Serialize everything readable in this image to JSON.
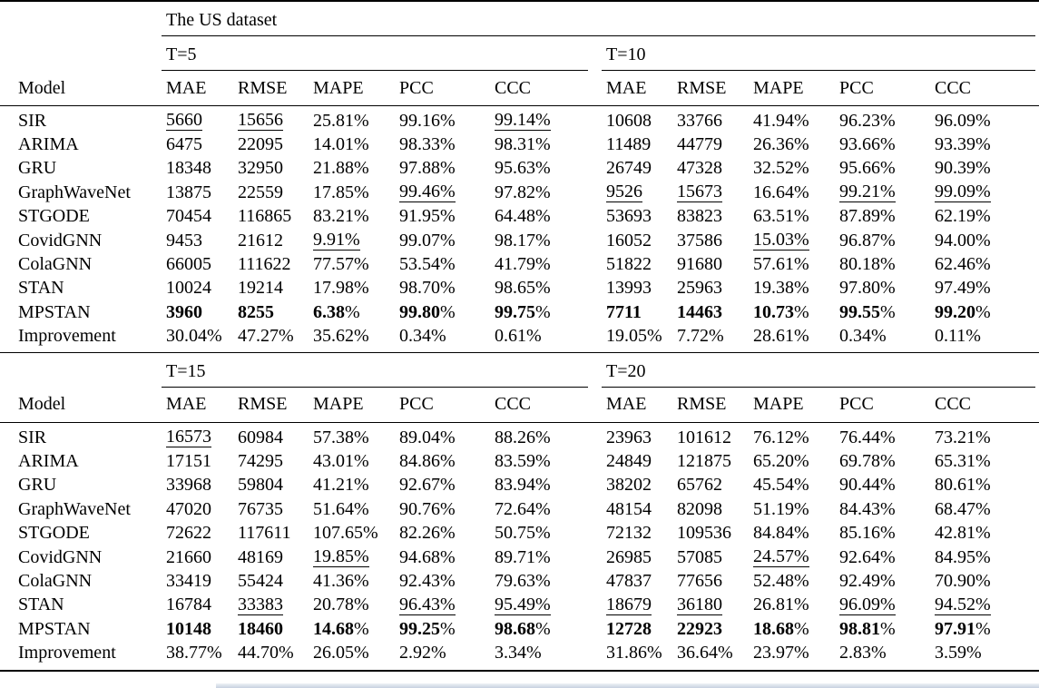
{
  "table": {
    "dataset_title": "The US dataset",
    "model_header": "Model",
    "col_headers": [
      "MAE",
      "RMSE",
      "MAPE",
      "PCC",
      "CCC"
    ],
    "style_key": {
      "b": "bold-best-result",
      "u": "underline-second-best"
    },
    "sections": [
      {
        "groups": [
          "T=5",
          "T=10"
        ],
        "rows": [
          {
            "model": "SIR",
            "cells": [
              {
                "v": "5660",
                "s": "u"
              },
              {
                "v": "15656",
                "s": "u"
              },
              "25.81%",
              "99.16%",
              {
                "v": "99.14%",
                "s": "u"
              },
              "10608",
              "33766",
              "41.94%",
              "96.23%",
              "96.09%"
            ]
          },
          {
            "model": "ARIMA",
            "cells": [
              "6475",
              "22095",
              "14.01%",
              "98.33%",
              "98.31%",
              "11489",
              "44779",
              "26.36%",
              "93.66%",
              "93.39%"
            ]
          },
          {
            "model": "GRU",
            "cells": [
              "18348",
              "32950",
              "21.88%",
              "97.88%",
              "95.63%",
              "26749",
              "47328",
              "32.52%",
              "95.66%",
              "90.39%"
            ]
          },
          {
            "model": "GraphWaveNet",
            "cells": [
              "13875",
              "22559",
              "17.85%",
              {
                "v": "99.46%",
                "s": "u"
              },
              "97.82%",
              {
                "v": "9526",
                "s": "u"
              },
              {
                "v": "15673",
                "s": "u"
              },
              "16.64%",
              {
                "v": "99.21%",
                "s": "u"
              },
              {
                "v": "99.09%",
                "s": "u"
              }
            ]
          },
          {
            "model": "STGODE",
            "cells": [
              "70454",
              "116865",
              "83.21%",
              "91.95%",
              "64.48%",
              "53693",
              "83823",
              "63.51%",
              "87.89%",
              "62.19%"
            ]
          },
          {
            "model": "CovidGNN",
            "cells": [
              "9453",
              "21612",
              {
                "v": "9.91%",
                "s": "u"
              },
              "99.07%",
              "98.17%",
              "16052",
              "37586",
              {
                "v": "15.03%",
                "s": "u"
              },
              "96.87%",
              "94.00%"
            ]
          },
          {
            "model": "ColaGNN",
            "cells": [
              "66005",
              "111622",
              "77.57%",
              "53.54%",
              "41.79%",
              "51822",
              "91680",
              "57.61%",
              "80.18%",
              "62.46%"
            ]
          },
          {
            "model": "STAN",
            "cells": [
              "10024",
              "19214",
              "17.98%",
              "98.70%",
              "98.65%",
              "13993",
              "25963",
              "19.38%",
              "97.80%",
              "97.49%"
            ]
          },
          {
            "model": "MPSTAN",
            "cells": [
              {
                "v": "3960",
                "s": "b"
              },
              {
                "v": "8255",
                "s": "b"
              },
              {
                "v": "6.38%",
                "s": "b"
              },
              {
                "v": "99.80%",
                "s": "b"
              },
              {
                "v": "99.75%",
                "s": "b"
              },
              {
                "v": "7711",
                "s": "b"
              },
              {
                "v": "14463",
                "s": "b"
              },
              {
                "v": "10.73%",
                "s": "b"
              },
              {
                "v": "99.55%",
                "s": "b"
              },
              {
                "v": "99.20%",
                "s": "b"
              }
            ]
          },
          {
            "model": "Improvement",
            "cells": [
              "30.04%",
              "47.27%",
              "35.62%",
              "0.34%",
              "0.61%",
              "19.05%",
              "7.72%",
              "28.61%",
              "0.34%",
              "0.11%"
            ]
          }
        ]
      },
      {
        "groups": [
          "T=15",
          "T=20"
        ],
        "rows": [
          {
            "model": "SIR",
            "cells": [
              {
                "v": "16573",
                "s": "u"
              },
              "60984",
              "57.38%",
              "89.04%",
              "88.26%",
              "23963",
              "101612",
              "76.12%",
              "76.44%",
              "73.21%"
            ]
          },
          {
            "model": "ARIMA",
            "cells": [
              "17151",
              "74295",
              "43.01%",
              "84.86%",
              "83.59%",
              "24849",
              "121875",
              "65.20%",
              "69.78%",
              "65.31%"
            ]
          },
          {
            "model": "GRU",
            "cells": [
              "33968",
              "59804",
              "41.21%",
              "92.67%",
              "83.94%",
              "38202",
              "65762",
              "45.54%",
              "90.44%",
              "80.61%"
            ]
          },
          {
            "model": "GraphWaveNet",
            "cells": [
              "47020",
              "76735",
              "51.64%",
              "90.76%",
              "72.64%",
              "48154",
              "82098",
              "51.19%",
              "84.43%",
              "68.47%"
            ]
          },
          {
            "model": "STGODE",
            "cells": [
              "72622",
              "117611",
              "107.65%",
              "82.26%",
              "50.75%",
              "72132",
              "109536",
              "84.84%",
              "85.16%",
              "42.81%"
            ]
          },
          {
            "model": "CovidGNN",
            "cells": [
              "21660",
              "48169",
              {
                "v": "19.85%",
                "s": "u"
              },
              "94.68%",
              "89.71%",
              "26985",
              "57085",
              {
                "v": "24.57%",
                "s": "u"
              },
              "92.64%",
              "84.95%"
            ]
          },
          {
            "model": "ColaGNN",
            "cells": [
              "33419",
              "55424",
              "41.36%",
              "92.43%",
              "79.63%",
              "47837",
              "77656",
              "52.48%",
              "92.49%",
              "70.90%"
            ]
          },
          {
            "model": "STAN",
            "cells": [
              "16784",
              {
                "v": "33383",
                "s": "u"
              },
              "20.78%",
              {
                "v": "96.43%",
                "s": "u"
              },
              {
                "v": "95.49%",
                "s": "u"
              },
              {
                "v": "18679",
                "s": "u"
              },
              {
                "v": "36180",
                "s": "u"
              },
              "26.81%",
              {
                "v": "96.09%",
                "s": "u"
              },
              {
                "v": "94.52%",
                "s": "u"
              }
            ]
          },
          {
            "model": "MPSTAN",
            "cells": [
              {
                "v": "10148",
                "s": "b"
              },
              {
                "v": "18460",
                "s": "b"
              },
              {
                "v": "14.68%",
                "s": "b"
              },
              {
                "v": "99.25%",
                "s": "b"
              },
              {
                "v": "98.68%",
                "s": "b"
              },
              {
                "v": "12728",
                "s": "b"
              },
              {
                "v": "22923",
                "s": "b"
              },
              {
                "v": "18.68%",
                "s": "b"
              },
              {
                "v": "98.81%",
                "s": "b"
              },
              {
                "v": "97.91%",
                "s": "b"
              }
            ]
          },
          {
            "model": "Improvement",
            "cells": [
              "38.77%",
              "44.70%",
              "26.05%",
              "2.92%",
              "3.34%",
              "31.86%",
              "36.64%",
              "23.97%",
              "2.83%",
              "3.59%"
            ]
          }
        ]
      }
    ]
  }
}
